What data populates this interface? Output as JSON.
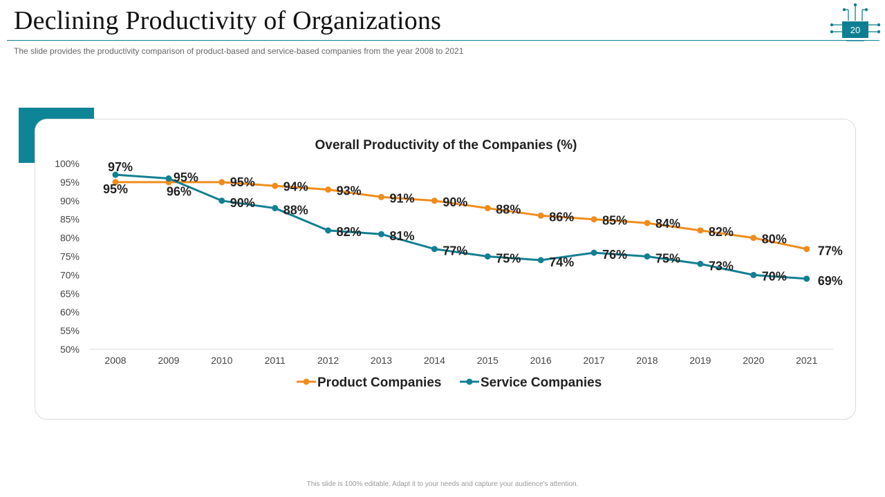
{
  "slide": {
    "title": "Declining Productivity of Organizations",
    "subtitle": "The slide provides  the productivity  comparison of product-based  and service-based  companies from the year 2008 to 2021",
    "page_number": "20",
    "footer": "This slide is 100% editable. Adapt it to your needs and capture your audience's attention."
  },
  "colors": {
    "accent": "#0e8596",
    "product": "#ef8c1c",
    "service": "#137f92"
  },
  "chart_data": {
    "type": "line",
    "title": "Overall Productivity of the Companies (%)",
    "xlabel": "",
    "ylabel": "",
    "ylim": [
      50,
      100
    ],
    "yticks": [
      "50%",
      "55%",
      "60%",
      "65%",
      "70%",
      "75%",
      "80%",
      "85%",
      "90%",
      "95%",
      "100%"
    ],
    "categories": [
      "2008",
      "2009",
      "2010",
      "2011",
      "2012",
      "2013",
      "2014",
      "2015",
      "2016",
      "2017",
      "2018",
      "2019",
      "2020",
      "2021"
    ],
    "series": [
      {
        "name": "Product Companies",
        "color": "#ef8c1c",
        "values": [
          95,
          95,
          95,
          94,
          93,
          91,
          90,
          88,
          86,
          85,
          84,
          82,
          80,
          77
        ],
        "labels": [
          "95%",
          "",
          "95%",
          "94%",
          "93%",
          "91%",
          "90%",
          "88%",
          "86%",
          "85%",
          "84%",
          "82%",
          "80%",
          "77%"
        ]
      },
      {
        "name": "Service Companies",
        "color": "#137f92",
        "values": [
          97,
          96,
          90,
          88,
          82,
          81,
          77,
          75,
          74,
          76,
          75,
          73,
          70,
          69
        ],
        "labels": [
          "97%",
          "96%",
          "90%",
          "88%",
          "82%",
          "81%",
          "77%",
          "75%",
          "74%",
          "76%",
          "75%",
          "73%",
          "70%",
          "69%"
        ]
      }
    ],
    "extra_labels": [
      "95%"
    ],
    "legend": "bottom-center"
  }
}
